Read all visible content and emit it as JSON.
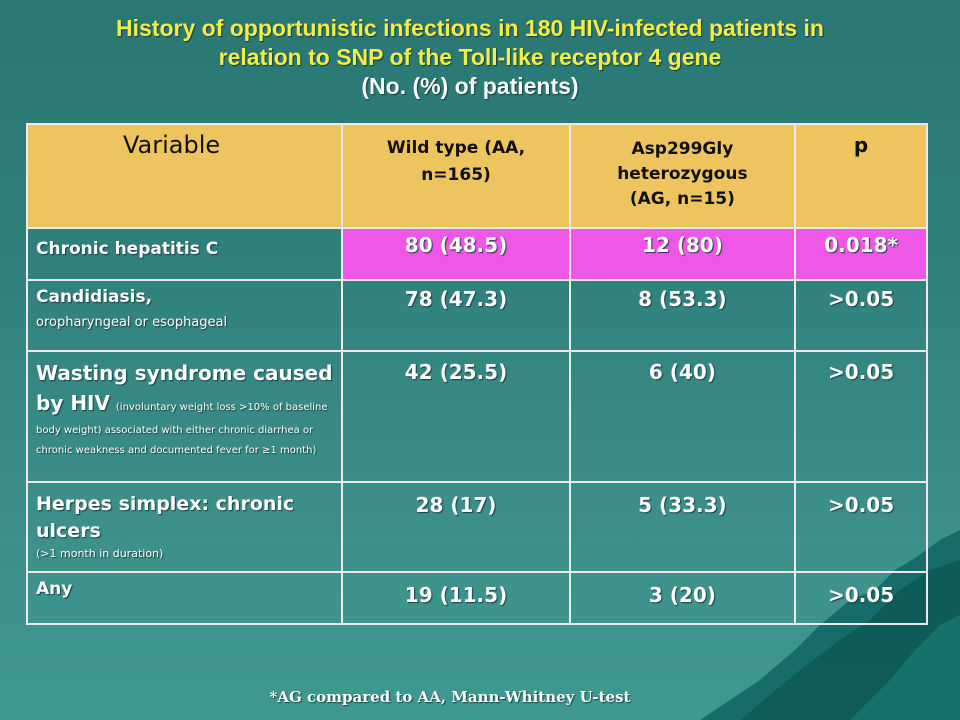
{
  "title": {
    "line1": "History of opportunistic infections in 180 HIV-infected patients in",
    "line2": "relation to SNP of the Toll-like receptor 4 gene",
    "line3": "(No. (%) of patients)"
  },
  "table": {
    "headers": {
      "variable": "Variable",
      "wild_type_line1": "Wild type (AA,",
      "wild_type_line2": "n=165)",
      "asp_line1": "Asp299Gly heterozygous",
      "asp_line2": "(AG, n=15)",
      "p": "p"
    },
    "rows": [
      {
        "label_main": "Chronic hepatitis C",
        "wild_type": "80 (48.5)",
        "asp": "12 (80)",
        "p": "0.018*"
      },
      {
        "label_main": "Candidiasis,",
        "label_sub": "oropharyngeal or esophageal",
        "wild_type": "78 (47.3)",
        "asp": "8 (53.3)",
        "p": ">0.05"
      },
      {
        "label_main": "Wasting syndrome caused by HIV",
        "label_sub": "(involuntary weight loss >10% of baseline body weight) associated with either chronic diarrhea or chronic weakness and documented fever for ≥1 month)",
        "wild_type": "42 (25.5)",
        "asp": "6 (40)",
        "p": ">0.05"
      },
      {
        "label_main": "Herpes simplex: chronic ulcers",
        "label_sub": "(>1 month in duration)",
        "wild_type": "28 (17)",
        "asp": "5 (33.3)",
        "p": ">0.05"
      },
      {
        "label_main": "Any",
        "wild_type": "19 (11.5)",
        "asp": "3 (20)",
        "p": ">0.05"
      }
    ]
  },
  "footnote": "*AG compared to AA, Mann-Whitney U-test",
  "colors": {
    "header_bg": "#eec45f",
    "highlight_bg": "#ee57e7",
    "title_color": "#f4ec48"
  }
}
